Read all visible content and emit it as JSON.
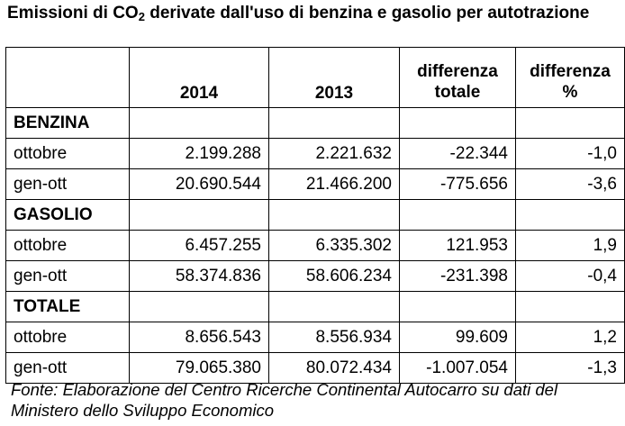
{
  "title": {
    "prefix": "Emissioni di CO",
    "subscript": "2",
    "suffix": " derivate dall'uso di benzina e gasolio per autotrazione"
  },
  "table": {
    "headers": [
      "",
      "2014",
      "2013",
      "differenza\ntotale",
      "differenza\n%"
    ],
    "sections": [
      {
        "name": "BENZINA",
        "rows": [
          {
            "label": "ottobre",
            "values": [
              "2.199.288",
              "2.221.632",
              "-22.344",
              "-1,0"
            ]
          },
          {
            "label": "gen-ott",
            "values": [
              "20.690.544",
              "21.466.200",
              "-775.656",
              "-3,6"
            ]
          }
        ]
      },
      {
        "name": "GASOLIO",
        "rows": [
          {
            "label": "ottobre",
            "values": [
              "6.457.255",
              "6.335.302",
              "121.953",
              "1,9"
            ]
          },
          {
            "label": "gen-ott",
            "values": [
              "58.374.836",
              "58.606.234",
              "-231.398",
              "-0,4"
            ]
          }
        ]
      },
      {
        "name": "TOTALE",
        "rows": [
          {
            "label": "ottobre",
            "values": [
              "8.656.543",
              "8.556.934",
              "99.609",
              "1,2"
            ]
          },
          {
            "label": "gen-ott",
            "values": [
              "79.065.380",
              "80.072.434",
              "-1.007.054",
              "-1,3"
            ]
          }
        ]
      }
    ]
  },
  "source": "Fonte: Elaborazione del Centro Ricerche Continental Autocarro su dati del Ministero dello Sviluppo Economico"
}
